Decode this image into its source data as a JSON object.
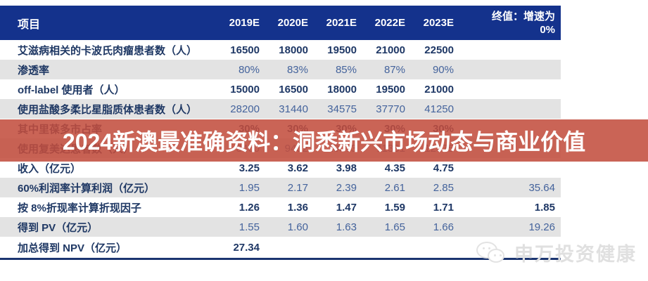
{
  "banner": {
    "text": "2024新澳最准确资料：洞悉新兴市场动态与商业价值",
    "bg_color": "#C24D3D",
    "text_color": "#FFFFFF"
  },
  "table": {
    "header": {
      "item_label": "项目",
      "year_columns": [
        "2019E",
        "2020E",
        "2021E",
        "2022E",
        "2023E"
      ],
      "terminal_label": "终值：增速为\n0%",
      "bg_color": "#14328C",
      "text_color": "#FFFFFF"
    },
    "rows": [
      {
        "label": "艾滋病相关的卡波氏肉瘤患者数（人）",
        "values": [
          "16500",
          "18000",
          "19500",
          "21000",
          "22500"
        ],
        "terminal": ""
      },
      {
        "label": "渗透率",
        "values": [
          "80%",
          "83%",
          "85%",
          "87%",
          "90%"
        ],
        "terminal": ""
      },
      {
        "label": "off-label 使用者（人）",
        "values": [
          "15000",
          "16500",
          "18000",
          "19500",
          "21000"
        ],
        "terminal": ""
      },
      {
        "label": "使用盐酸多柔比星脂质体患者数（人）",
        "values": [
          "28200",
          "31440",
          "34575",
          "37770",
          "41250"
        ],
        "terminal": ""
      },
      {
        "label": "其中里葆多市占率",
        "values": [
          "30%",
          "30%",
          "30%",
          "30%",
          "30%"
        ],
        "terminal": ""
      },
      {
        "label": "使用复美达患者数（人）",
        "values": [
          "8460",
          "9432",
          "10373",
          "11331",
          "12375"
        ],
        "terminal": ""
      },
      {
        "label": "收入（亿元）",
        "values": [
          "3.25",
          "3.62",
          "3.98",
          "4.35",
          "4.75"
        ],
        "terminal": ""
      },
      {
        "label": "60%利润率计算利润（亿元）",
        "values": [
          "1.95",
          "2.17",
          "2.39",
          "2.61",
          "2.85"
        ],
        "terminal": "35.64"
      },
      {
        "label": "按 8%折现率计算折现因子",
        "values": [
          "1.26",
          "1.36",
          "1.47",
          "1.59",
          "1.71"
        ],
        "terminal": "1.85"
      },
      {
        "label": "得到 PV（亿元）",
        "values": [
          "1.55",
          "1.60",
          "1.63",
          "1.65",
          "1.66"
        ],
        "terminal": "19.26"
      },
      {
        "label": "加总得到 NPV（亿元）",
        "values": [
          "27.34",
          "",
          "",
          "",
          ""
        ],
        "terminal": ""
      }
    ],
    "colors": {
      "row_alt_bg": "#E3E3E3",
      "label_text": "#1F3864",
      "value_text_odd": "#1E3765",
      "value_text_even": "#44639C",
      "bottom_line": "#1B3570"
    }
  },
  "watermark": {
    "text": "申万投资健康"
  }
}
